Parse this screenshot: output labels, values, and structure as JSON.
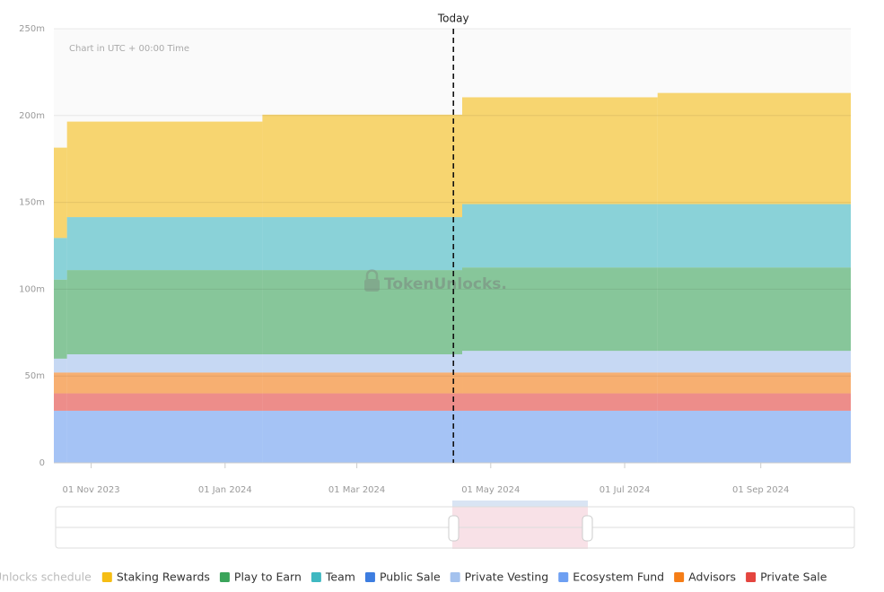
{
  "chart_data": {
    "type": "stacked-step-area",
    "annotation": "Chart in UTC + 00:00 Time",
    "watermark": "TokenUnlocks.",
    "today": {
      "x": "2024-04-14",
      "label": "Today"
    },
    "legend_title": "Unlocks schedule",
    "x": [
      "2023-10-15",
      "2023-10-21",
      "2024-01-18",
      "2024-04-18",
      "2024-07-16"
    ],
    "xlim": [
      "2023-10-15",
      "2024-10-12"
    ],
    "xticks": [
      {
        "value": "2023-11-01",
        "label": "01 Nov 2023"
      },
      {
        "value": "2024-01-01",
        "label": "01 Jan 2024"
      },
      {
        "value": "2024-03-01",
        "label": "01 Mar 2024"
      },
      {
        "value": "2024-05-01",
        "label": "01 May 2024"
      },
      {
        "value": "2024-07-01",
        "label": "01 Jul 2024"
      },
      {
        "value": "2024-09-01",
        "label": "01 Sep 2024"
      }
    ],
    "ylim": [
      0,
      250
    ],
    "yticks": [
      0,
      {
        "value": 50,
        "label": "50m"
      },
      {
        "value": 100,
        "label": "100m"
      },
      {
        "value": 150,
        "label": "150m"
      },
      {
        "value": 200,
        "label": "200m"
      },
      {
        "value": 250,
        "label": "250m"
      }
    ],
    "grid": true,
    "series": [
      {
        "name": "Staking Rewards",
        "color": "#f5bd14",
        "values": [
          52,
          55,
          59,
          61.5,
          64
        ]
      },
      {
        "name": "Play to Earn",
        "color": "#3aa45a",
        "values": [
          45.5,
          48.5,
          48.5,
          48,
          48
        ]
      },
      {
        "name": "Team",
        "color": "#3fb8c1",
        "values": [
          24,
          30.5,
          30.5,
          36.5,
          36.5
        ]
      },
      {
        "name": "Public Sale",
        "color": "#3d7de0",
        "values": [
          0,
          0,
          0,
          0,
          0
        ]
      },
      {
        "name": "Private Vesting",
        "color": "#a4c2ee",
        "values": [
          8,
          10.5,
          10.5,
          12.5,
          12.5
        ]
      },
      {
        "name": "Ecosystem Fund",
        "color": "#6d9ff2",
        "values": [
          30,
          30,
          30,
          30,
          30
        ]
      },
      {
        "name": "Advisors",
        "color": "#f57d16",
        "values": [
          12,
          12,
          12,
          12,
          12
        ]
      },
      {
        "name": "Private Sale",
        "color": "#e4453f",
        "values": [
          10,
          10,
          10,
          10,
          10
        ]
      }
    ]
  }
}
